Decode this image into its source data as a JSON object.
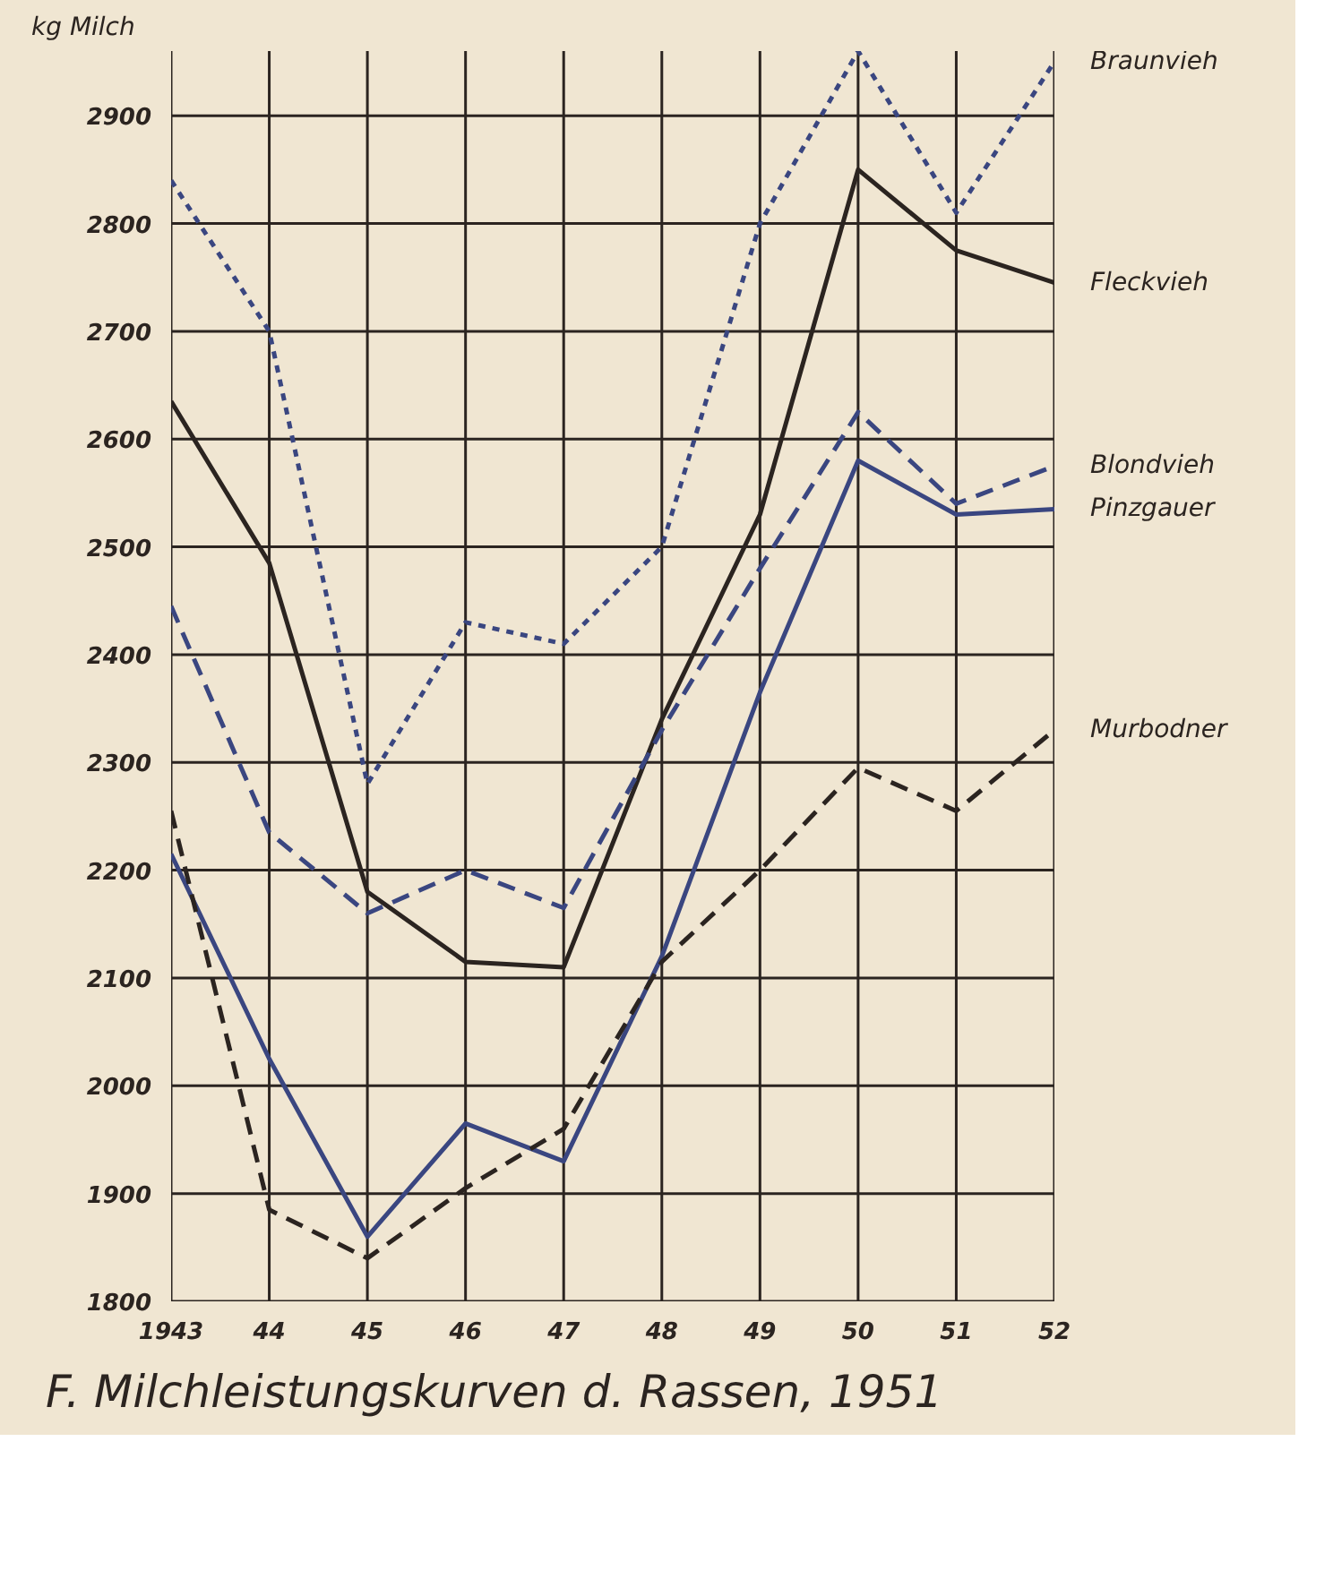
{
  "chart_data": {
    "type": "line",
    "title": "F. Milchleistungskurven d. Rassen, 1951",
    "ylabel": "kg Milch",
    "x": [
      1943,
      1944,
      1945,
      1946,
      1947,
      1948,
      1949,
      1950,
      1951,
      1952
    ],
    "xlim": [
      1943,
      1952
    ],
    "ylim": [
      1800,
      2960
    ],
    "xticks": [
      1943,
      {
        "value": 1944,
        "label": "44"
      },
      {
        "value": 1945,
        "label": "45"
      },
      {
        "value": 1946,
        "label": "46"
      },
      {
        "value": 1947,
        "label": "47"
      },
      {
        "value": 1948,
        "label": "48"
      },
      {
        "value": 1949,
        "label": "49"
      },
      {
        "value": 1950,
        "label": "50"
      },
      {
        "value": 1951,
        "label": "51"
      },
      {
        "value": 1952,
        "label": "52"
      }
    ],
    "yticks": [
      1800,
      1900,
      2000,
      2100,
      2200,
      2300,
      2400,
      2500,
      2600,
      2700,
      2800,
      2900
    ],
    "grid": true,
    "legend": false,
    "marker": "none",
    "series": [
      {
        "name": "Braunvieh",
        "color": "#3a4680",
        "line_style": "dotted",
        "values": [
          2840,
          2700,
          2280,
          2430,
          2410,
          2500,
          2800,
          2960,
          2810,
          2950
        ]
      },
      {
        "name": "Fleckvieh",
        "color": "#2b2420",
        "line_style": "solid",
        "values": [
          2635,
          2485,
          2180,
          2115,
          2110,
          2340,
          2530,
          2850,
          2775,
          2745
        ]
      },
      {
        "name": "Blondvieh",
        "color": "#3a4680",
        "line_style": "dashed",
        "values": [
          2445,
          2235,
          2160,
          2200,
          2165,
          2330,
          2480,
          2625,
          2540,
          2575
        ]
      },
      {
        "name": "Pinzgauer",
        "color": "#3a4680",
        "line_style": "solid",
        "values": [
          2215,
          2025,
          1860,
          1965,
          1930,
          2120,
          2365,
          2580,
          2530,
          2535
        ]
      },
      {
        "name": "Murbodner",
        "color": "#2b2420",
        "line_style": "dashed",
        "values": [
          2255,
          1885,
          1840,
          1905,
          1960,
          2115,
          2200,
          2295,
          2255,
          2330
        ]
      }
    ]
  }
}
